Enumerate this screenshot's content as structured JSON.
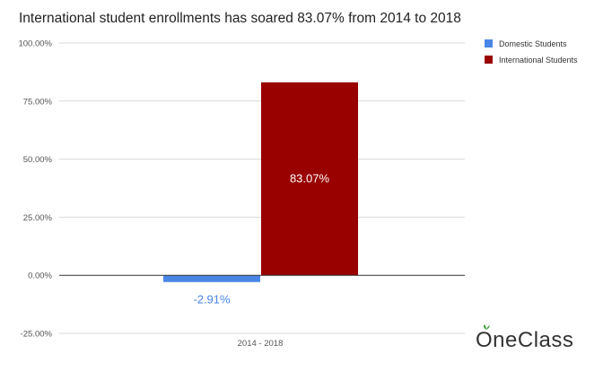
{
  "chart_data": {
    "type": "bar",
    "title": "International student enrollments has soared 83.07% from 2014 to 2018",
    "categories": [
      "2014 - 2018"
    ],
    "series": [
      {
        "name": "Domestic Students",
        "values": [
          -2.91
        ],
        "color": "#4a86e8",
        "label": "-2.91%"
      },
      {
        "name": "International Students",
        "values": [
          83.07
        ],
        "color": "#990000",
        "label": "83.07%"
      }
    ],
    "ylim": [
      -25,
      100
    ],
    "yticks": [
      100,
      75,
      50,
      25,
      0,
      -25
    ],
    "ytick_labels": [
      "100.00%",
      "75.00%",
      "50.00%",
      "25.00%",
      "0.00%",
      "-25.00%"
    ],
    "xlabel": "",
    "ylabel": "",
    "grid": true,
    "legend_position": "top-right"
  },
  "branding": {
    "logo_text": "OneClass",
    "leaf_color": "#3c9a3c"
  }
}
